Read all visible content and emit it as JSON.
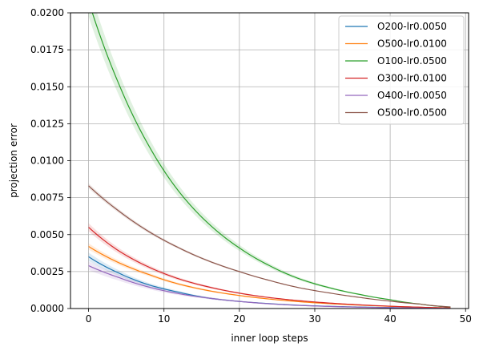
{
  "chart_data": {
    "type": "line",
    "title": "",
    "xlabel": "inner loop steps",
    "ylabel": "projection error",
    "xlim": [
      -2.4,
      50.4
    ],
    "ylim": [
      0,
      0.02
    ],
    "xticks": [
      0,
      10,
      20,
      30,
      40,
      50
    ],
    "xtick_labels": [
      "0",
      "10",
      "20",
      "30",
      "40",
      "50"
    ],
    "yticks": [
      0,
      0.0025,
      0.005,
      0.0075,
      0.01,
      0.0125,
      0.015,
      0.0175,
      0.02
    ],
    "ytick_labels": [
      "0.0000",
      "0.0025",
      "0.0050",
      "0.0075",
      "0.0100",
      "0.0125",
      "0.0150",
      "0.0175",
      "0.0200"
    ],
    "grid": true,
    "legend_position": "top-right",
    "x": [
      0,
      4,
      8,
      12,
      16,
      20,
      24,
      28,
      32,
      36,
      40,
      44,
      48
    ],
    "series": [
      {
        "name": "O200-lr0.0050",
        "color": "#1f77b4",
        "band": 0.08,
        "values": [
          0.0035,
          0.0024,
          0.0016,
          0.0011,
          0.0007,
          0.00048,
          0.00033,
          0.00022,
          0.00015,
          0.0001,
          7e-05,
          4e-05,
          2e-05
        ]
      },
      {
        "name": "O500-lr0.0100",
        "color": "#ff7f0e",
        "band": 0.05,
        "values": [
          0.0042,
          0.0031,
          0.0023,
          0.00165,
          0.0012,
          0.00088,
          0.00064,
          0.00046,
          0.00033,
          0.00023,
          0.00015,
          9e-05,
          4e-05
        ]
      },
      {
        "name": "O100-lr0.0500",
        "color": "#2ca02c",
        "band": 0.05,
        "values": [
          0.0208,
          0.0152,
          0.011,
          0.0079,
          0.0057,
          0.0041,
          0.0029,
          0.002,
          0.0014,
          0.00095,
          0.0006,
          0.0003,
          0.0001
        ]
      },
      {
        "name": "O300-lr0.0100",
        "color": "#d62728",
        "band": 0.05,
        "values": [
          0.0055,
          0.0039,
          0.0028,
          0.002,
          0.00145,
          0.00104,
          0.00074,
          0.00053,
          0.00037,
          0.00025,
          0.00016,
          9e-05,
          4e-05
        ]
      },
      {
        "name": "O400-lr0.0050",
        "color": "#9467bd",
        "band": 0.1,
        "values": [
          0.0029,
          0.0021,
          0.00145,
          0.001,
          0.0007,
          0.00048,
          0.00032,
          0.00021,
          0.00014,
          9e-05,
          6e-05,
          3e-05,
          1e-05
        ]
      },
      {
        "name": "O500-lr0.0500",
        "color": "#8c564b",
        "band": 0.02,
        "values": [
          0.0083,
          0.0066,
          0.0052,
          0.0041,
          0.0032,
          0.0025,
          0.0019,
          0.0014,
          0.00105,
          0.00075,
          0.0005,
          0.0003,
          0.00011
        ]
      }
    ]
  }
}
